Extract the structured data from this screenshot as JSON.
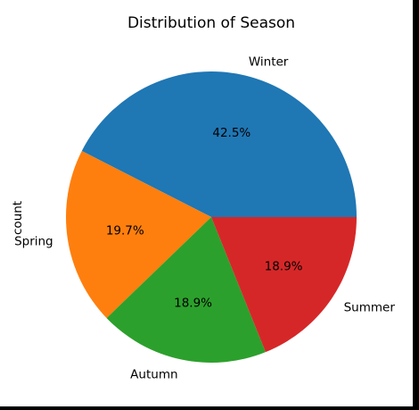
{
  "chart_data": {
    "type": "pie",
    "title": "Distribution of Season",
    "ylabel": "count",
    "slices": [
      {
        "label": "Winter",
        "pct_label": "42.5%",
        "value": 42.5,
        "color": "#1f77b4"
      },
      {
        "label": "Spring",
        "pct_label": "19.7%",
        "value": 19.7,
        "color": "#ff7f0e"
      },
      {
        "label": "Autumn",
        "pct_label": "18.9%",
        "value": 18.9,
        "color": "#2ca02c"
      },
      {
        "label": "Summer",
        "pct_label": "18.9%",
        "value": 18.9,
        "color": "#d62728"
      }
    ],
    "start_angle_deg": 0,
    "direction": "counterclockwise"
  }
}
